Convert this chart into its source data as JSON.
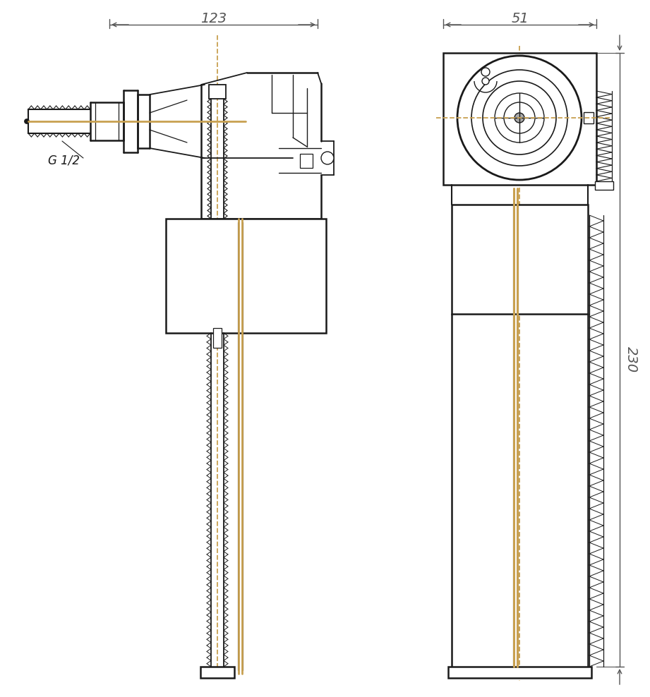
{
  "bg_color": "#ffffff",
  "line_color": "#1a1a1a",
  "dim_color": "#c8a050",
  "dim_line_color": "#555555",
  "text_color": "#1a1a1a",
  "fig_width": 9.21,
  "fig_height": 9.88,
  "dim_123_label": "123",
  "dim_51_label": "51",
  "dim_230_label": "230",
  "label_g12": "G 1/2"
}
